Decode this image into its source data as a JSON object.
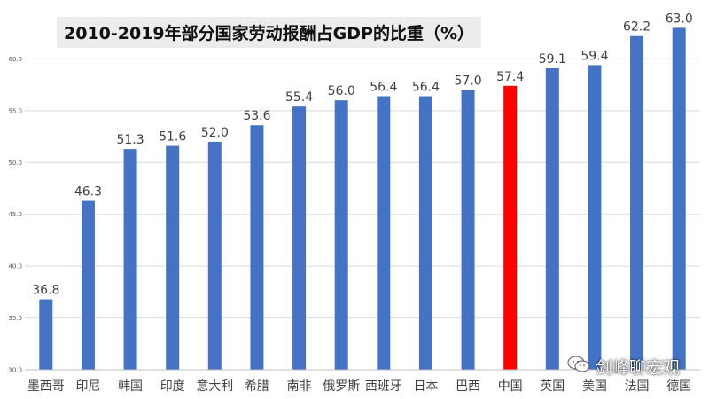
{
  "chart_data": {
    "type": "bar",
    "title": "2010-2019年部分国家劳动报酬占GDP的比重（%）",
    "xlabel": "",
    "ylabel": "",
    "ylim": [
      30,
      65
    ],
    "yticks": [
      "30.0",
      "35.0",
      "40.0",
      "45.0",
      "50.0",
      "55.0",
      "60.0"
    ],
    "grid": true,
    "categories": [
      "墨西哥",
      "印尼",
      "韩国",
      "印度",
      "意大利",
      "希腊",
      "南非",
      "俄罗斯",
      "西班牙",
      "日本",
      "巴西",
      "中国",
      "英国",
      "美国",
      "法国",
      "德国"
    ],
    "values": [
      36.8,
      46.3,
      51.3,
      51.6,
      52.0,
      53.6,
      55.4,
      56.0,
      56.4,
      56.4,
      57.0,
      57.4,
      59.1,
      59.4,
      62.2,
      63.0
    ],
    "data_labels": [
      "36.8",
      "46.3",
      "51.3",
      "51.6",
      "52.0",
      "53.6",
      "55.4",
      "56.0",
      "56.4",
      "56.4",
      "57.0",
      "57.4",
      "59.1",
      "59.4",
      "62.2",
      "63.0"
    ],
    "highlight": "中国",
    "colors": {
      "bar": "#4472c4",
      "highlight": "#ff0000",
      "grid": "#d9d9d9",
      "axis": "#bfbfbf",
      "label": "#404040"
    }
  },
  "watermark": {
    "icon": "wechat-icon",
    "text": "剑峰聊宏观"
  }
}
